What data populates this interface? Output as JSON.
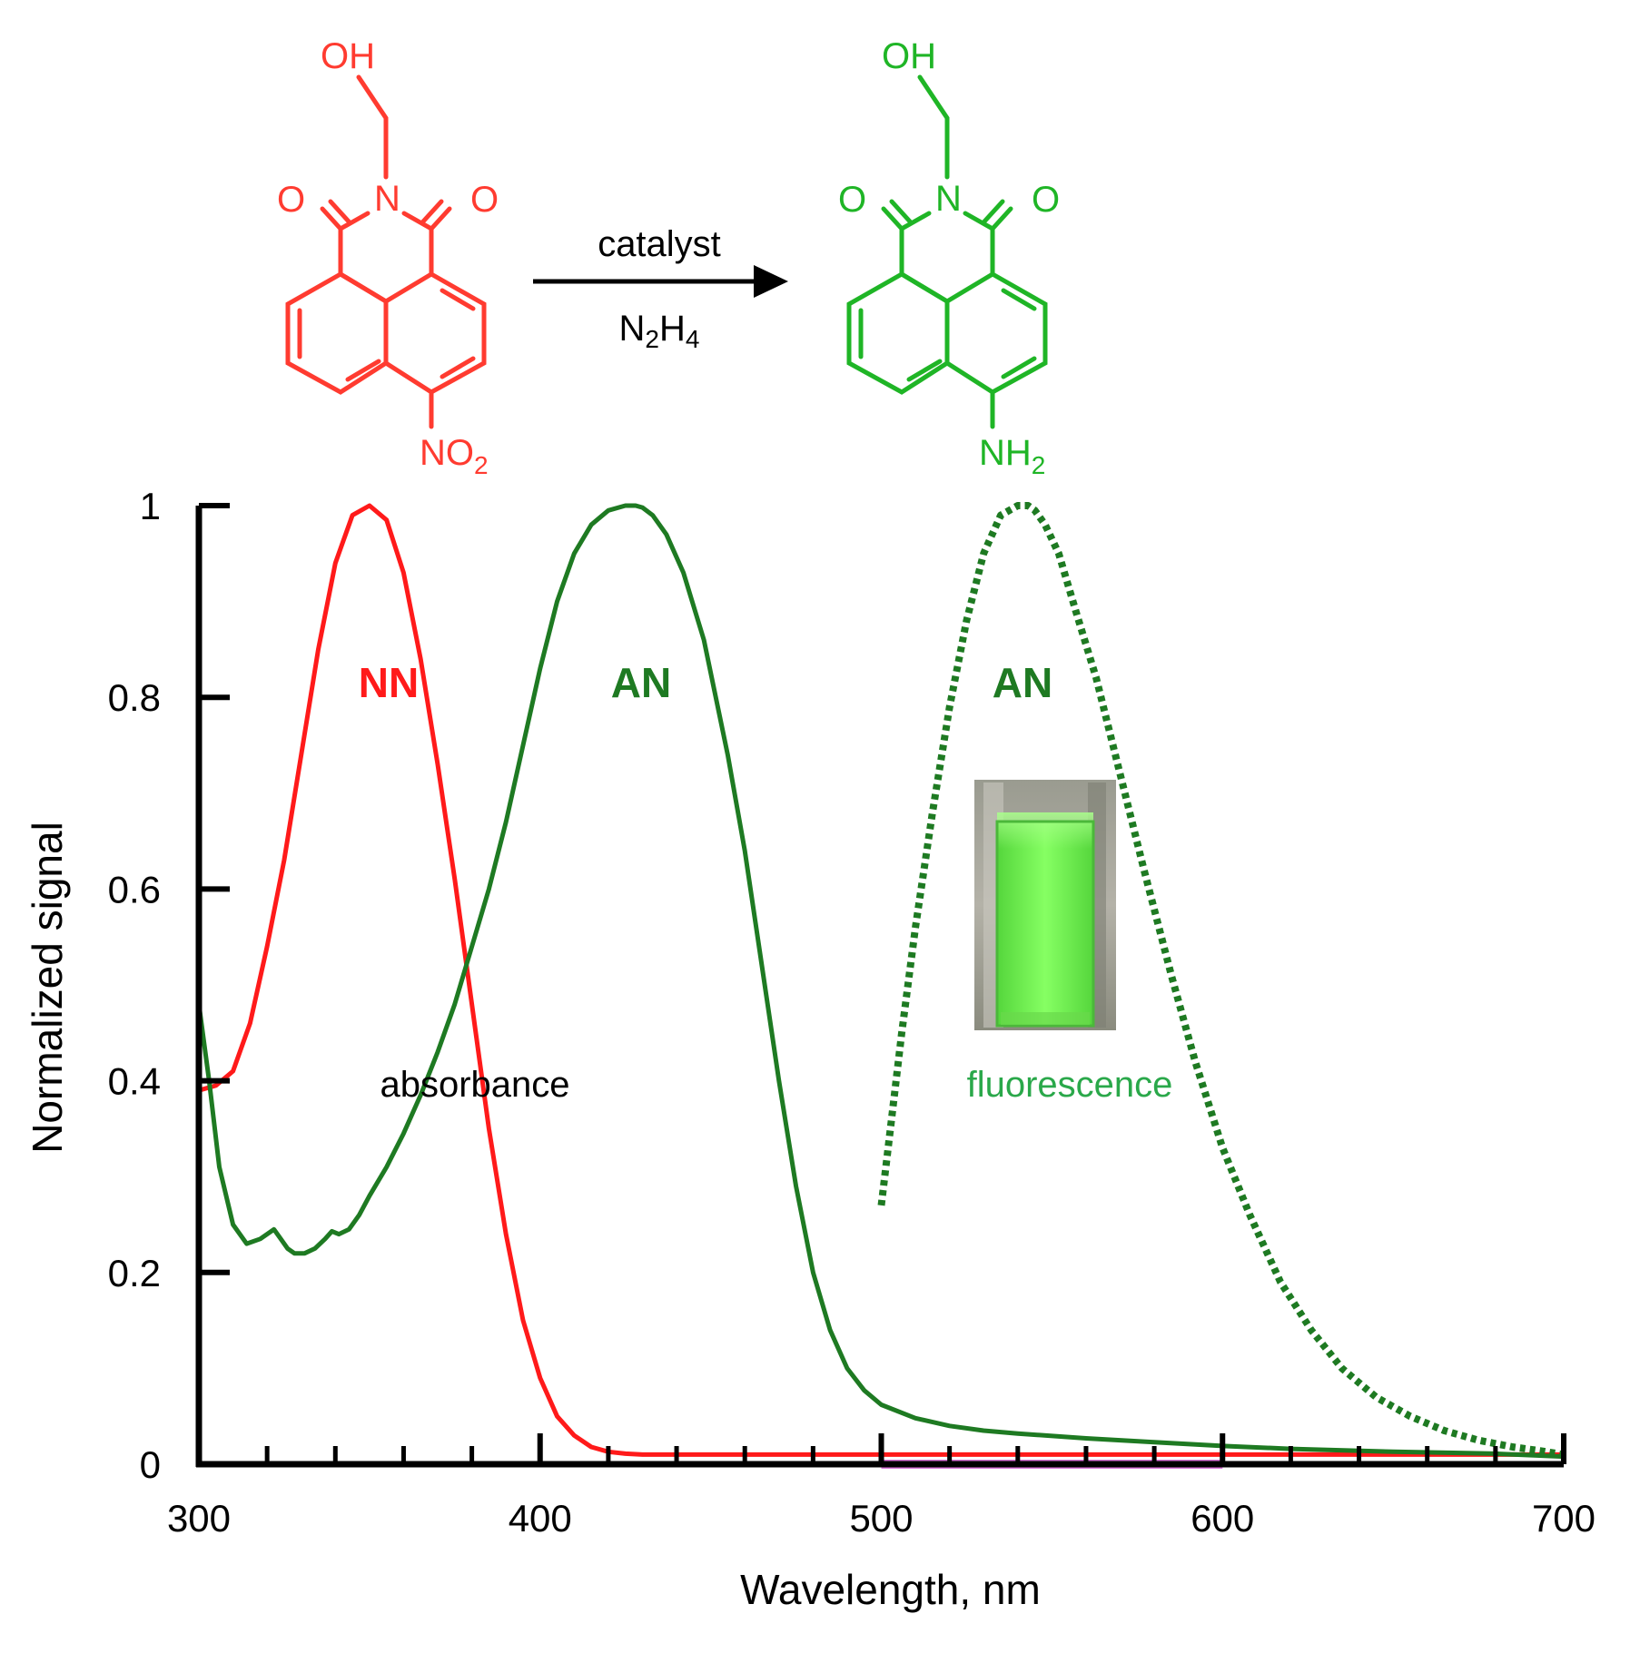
{
  "reaction": {
    "reactant_groups": {
      "oh": "OH",
      "o_left": "O",
      "n": "N",
      "o_right": "O",
      "nitro": "NO",
      "nitro_sub": "2"
    },
    "product_groups": {
      "oh": "OH",
      "o_left": "O",
      "n": "N",
      "o_right": "O",
      "amine": "NH",
      "amine_sub": "2"
    },
    "arrow_top": "catalyst",
    "arrow_bottom": {
      "n": "N",
      "n_sub": "2",
      "h": "H",
      "h_sub": "4"
    },
    "reactant_color": "#ff3b30",
    "product_color": "#1fb526"
  },
  "annotations": {
    "nn_label": "NN",
    "an_abs_label": "AN",
    "an_fl_label": "AN",
    "absorbance": "absorbance",
    "fluorescence": "fluorescence"
  },
  "photo": {
    "subject": "cuvette-photo",
    "glow_color": "#7dff5c"
  },
  "chart_data": {
    "type": "line",
    "xlabel": "Wavelength, nm",
    "ylabel": "Normalized signal",
    "xlim": [
      300,
      700
    ],
    "ylim": [
      0,
      1
    ],
    "xticks": [
      300,
      400,
      500,
      600,
      700
    ],
    "yticks": [
      0,
      0.2,
      0.4,
      0.6,
      0.8,
      1
    ],
    "ytick_labels": [
      "0",
      "0.2",
      "0.4",
      "0.6",
      "0.8",
      "1"
    ],
    "grid": false,
    "series": [
      {
        "color": "#ff1a1a",
        "style": "solid",
        "x": [
          300,
          305,
          310,
          315,
          320,
          325,
          330,
          335,
          340,
          345,
          350,
          355,
          360,
          365,
          370,
          375,
          380,
          385,
          390,
          395,
          400,
          405,
          410,
          415,
          420,
          425,
          430,
          440,
          460,
          480,
          500,
          550,
          600,
          650,
          700
        ],
        "y": [
          0.39,
          0.395,
          0.41,
          0.46,
          0.54,
          0.63,
          0.74,
          0.85,
          0.94,
          0.99,
          1.0,
          0.985,
          0.93,
          0.84,
          0.73,
          0.61,
          0.48,
          0.35,
          0.24,
          0.15,
          0.09,
          0.05,
          0.03,
          0.018,
          0.013,
          0.011,
          0.01,
          0.01,
          0.01,
          0.01,
          0.01,
          0.01,
          0.01,
          0.01,
          0.01
        ]
      },
      {
        "color": "#1e7a22",
        "style": "solid",
        "x": [
          300,
          303,
          306,
          310,
          314,
          318,
          322,
          324,
          326,
          328,
          331,
          334,
          337,
          339,
          341,
          344,
          347,
          350,
          355,
          360,
          365,
          370,
          375,
          380,
          385,
          390,
          395,
          400,
          405,
          410,
          415,
          420,
          425,
          428,
          430,
          433,
          437,
          442,
          448,
          455,
          460,
          465,
          470,
          475,
          480,
          485,
          490,
          495,
          500,
          510,
          520,
          530,
          540,
          560,
          580,
          600,
          620,
          650,
          680,
          700
        ],
        "y": [
          0.48,
          0.4,
          0.31,
          0.25,
          0.23,
          0.235,
          0.245,
          0.235,
          0.225,
          0.22,
          0.22,
          0.225,
          0.235,
          0.243,
          0.24,
          0.245,
          0.26,
          0.28,
          0.31,
          0.345,
          0.385,
          0.43,
          0.48,
          0.54,
          0.6,
          0.67,
          0.75,
          0.83,
          0.9,
          0.95,
          0.98,
          0.995,
          1.0,
          1.0,
          0.998,
          0.99,
          0.97,
          0.93,
          0.86,
          0.74,
          0.64,
          0.52,
          0.4,
          0.29,
          0.2,
          0.14,
          0.1,
          0.077,
          0.062,
          0.048,
          0.04,
          0.035,
          0.032,
          0.027,
          0.023,
          0.019,
          0.016,
          0.013,
          0.011,
          0.008
        ]
      },
      {
        "color": "#1e7a22",
        "style": "dotted",
        "x": [
          500,
          503,
          506,
          510,
          515,
          520,
          525,
          530,
          535,
          540,
          543,
          545,
          548,
          552,
          557,
          563,
          570,
          577,
          585,
          592,
          600,
          608,
          617,
          626,
          635,
          645,
          655,
          665,
          675,
          685,
          693,
          700
        ],
        "y": [
          0.27,
          0.36,
          0.45,
          0.56,
          0.68,
          0.79,
          0.88,
          0.95,
          0.99,
          1.0,
          1.0,
          0.995,
          0.98,
          0.95,
          0.89,
          0.82,
          0.72,
          0.62,
          0.51,
          0.42,
          0.33,
          0.26,
          0.19,
          0.14,
          0.1,
          0.07,
          0.05,
          0.035,
          0.025,
          0.018,
          0.014,
          0.01
        ]
      },
      {
        "color": "#d05ad0",
        "style": "solid",
        "x": [
          500,
          520,
          540,
          560,
          580,
          600
        ],
        "y": [
          0,
          0,
          0,
          0,
          0,
          0
        ]
      }
    ]
  }
}
